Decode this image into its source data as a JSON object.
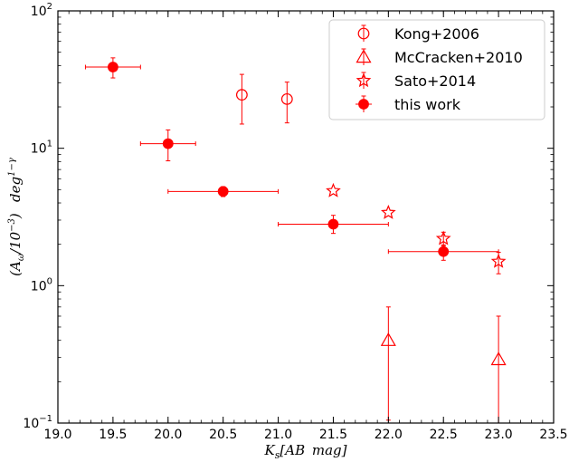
{
  "chart_data": {
    "type": "scatter",
    "xlabel": "K_s[AB mag]",
    "ylabel": "(A_ω/10^-3) deg^1-γ",
    "xlim": [
      19.0,
      23.5
    ],
    "ylim": [
      0.1,
      100
    ],
    "yscale": "log",
    "grid": false,
    "legend_position": "top-right",
    "x_ticks": [
      "19.0",
      "19.5",
      "20.0",
      "20.5",
      "21.0",
      "21.5",
      "22.0",
      "22.5",
      "23.0",
      "23.5"
    ],
    "y_ticks": [
      "10^-1",
      "10^0",
      "10^1",
      "10^2"
    ],
    "color": "#ff0000",
    "series": [
      {
        "name": "Kong+2006",
        "marker": "open-circle",
        "points": [
          {
            "x": 20.67,
            "y": 24.5,
            "ylo": 15.0,
            "yhi": 34.5
          },
          {
            "x": 21.08,
            "y": 22.8,
            "ylo": 15.3,
            "yhi": 30.3
          }
        ]
      },
      {
        "name": "McCracken+2010",
        "marker": "open-triangle",
        "points": [
          {
            "x": 22.0,
            "y": 0.4,
            "ylo": 0.105,
            "yhi": 0.7
          },
          {
            "x": 23.0,
            "y": 0.29,
            "ylo": 0.1,
            "yhi": 0.6
          }
        ]
      },
      {
        "name": "Sato+2014",
        "marker": "open-star",
        "points": [
          {
            "x": 21.5,
            "y": 4.9
          },
          {
            "x": 22.0,
            "y": 3.4
          },
          {
            "x": 22.5,
            "y": 2.2,
            "ylo": 1.95,
            "yhi": 2.45
          },
          {
            "x": 23.0,
            "y": 1.5,
            "ylo": 1.22,
            "yhi": 1.75
          }
        ]
      },
      {
        "name": "this work",
        "marker": "filled-circle",
        "points": [
          {
            "x": 19.5,
            "y": 39.0,
            "xlo": 19.25,
            "xhi": 19.75,
            "ylo": 32.5,
            "yhi": 45.5
          },
          {
            "x": 20.0,
            "y": 10.8,
            "xlo": 19.75,
            "xhi": 20.25,
            "ylo": 8.1,
            "yhi": 13.6
          },
          {
            "x": 20.5,
            "y": 4.85,
            "xlo": 20.0,
            "xhi": 21.0,
            "ylo": 4.45,
            "yhi": 5.25
          },
          {
            "x": 21.5,
            "y": 2.8,
            "xlo": 21.0,
            "xhi": 22.0,
            "ylo": 2.4,
            "yhi": 3.25
          },
          {
            "x": 22.5,
            "y": 1.77,
            "xlo": 22.0,
            "xhi": 23.0,
            "ylo": 1.53,
            "yhi": 1.98
          }
        ]
      }
    ]
  }
}
